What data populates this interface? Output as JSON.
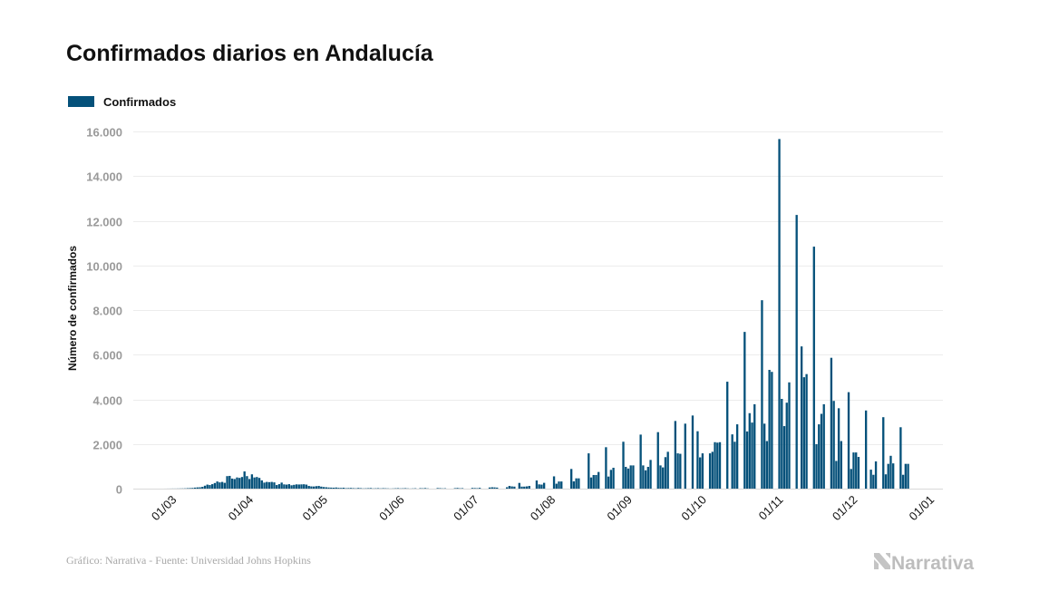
{
  "chart_data": {
    "type": "bar",
    "title": "Confirmados diarios en Andalucía",
    "legend": [
      {
        "label": "Confirmados",
        "color": "#05517a"
      }
    ],
    "legend_position": "top-left",
    "xlabel": "",
    "ylabel": "Número de confirmados",
    "ylim": [
      0,
      16000
    ],
    "yticks": [
      0,
      2000,
      4000,
      6000,
      8000,
      10000,
      12000,
      14000,
      16000
    ],
    "ytick_labels": [
      "0",
      "2.000",
      "4.000",
      "6.000",
      "8.000",
      "10.000",
      "12.000",
      "14.000",
      "16.000"
    ],
    "xlim": [
      "2020-02-13",
      "2021-01-05"
    ],
    "xticks": [
      "2020-03-01",
      "2020-04-01",
      "2020-05-01",
      "2020-06-01",
      "2020-07-01",
      "2020-08-01",
      "2020-09-01",
      "2020-10-01",
      "2020-11-01",
      "2020-12-01",
      "2021-01-01"
    ],
    "xtick_labels": [
      "01/03",
      "01/04",
      "01/05",
      "01/06",
      "01/07",
      "01/08",
      "01/09",
      "01/10",
      "01/11",
      "01/12",
      "01/01"
    ],
    "grid": true,
    "start_date": "2020-02-24",
    "series": [
      {
        "name": "Confirmados",
        "color": "#05517a",
        "values": [
          0,
          0,
          1,
          2,
          3,
          5,
          4,
          6,
          8,
          10,
          12,
          20,
          25,
          30,
          45,
          55,
          60,
          80,
          130,
          180,
          160,
          200,
          250,
          320,
          280,
          300,
          260,
          560,
          570,
          450,
          430,
          500,
          480,
          520,
          770,
          560,
          430,
          640,
          500,
          520,
          480,
          370,
          270,
          300,
          290,
          300,
          280,
          160,
          200,
          270,
          190,
          180,
          200,
          150,
          170,
          190,
          185,
          190,
          195,
          180,
          120,
          100,
          95,
          110,
          120,
          90,
          70,
          60,
          50,
          45,
          40,
          50,
          35,
          30,
          40,
          20,
          25,
          30,
          20,
          15,
          30,
          20,
          10,
          15,
          20,
          25,
          10,
          15,
          20,
          10,
          20,
          15,
          10,
          5,
          10,
          15,
          20,
          10,
          15,
          20,
          10,
          5,
          10,
          15,
          0,
          20,
          15,
          25,
          10,
          0,
          0,
          0,
          25,
          20,
          10,
          15,
          0,
          0,
          0,
          20,
          30,
          15,
          20,
          0,
          0,
          0,
          30,
          25,
          20,
          35,
          0,
          0,
          0,
          50,
          60,
          55,
          45,
          0,
          0,
          0,
          60,
          120,
          100,
          90,
          0,
          255,
          90,
          90,
          100,
          120,
          0,
          0,
          365,
          190,
          180,
          260,
          0,
          0,
          0,
          550,
          220,
          320,
          320,
          0,
          0,
          0,
          880,
          325,
          460,
          460,
          0,
          0,
          0,
          1580,
          500,
          610,
          610,
          745,
          0,
          0,
          1855,
          540,
          840,
          935,
          0,
          0,
          0,
          2100,
          975,
          900,
          1040,
          1040,
          0,
          0,
          2420,
          1040,
          820,
          975,
          1285,
          0,
          0,
          2530,
          1040,
          950,
          1410,
          1650,
          0,
          0,
          3030,
          1580,
          1560,
          0,
          2910,
          0,
          0,
          3275,
          0,
          2570,
          1400,
          1580,
          0,
          0,
          1580,
          1650,
          2080,
          2060,
          2080,
          0,
          0,
          4790,
          0,
          2430,
          2100,
          2880,
          0,
          0,
          7020,
          2560,
          3380,
          2960,
          3780,
          0,
          0,
          8440,
          2910,
          2130,
          5320,
          5230,
          0,
          0,
          15660,
          4020,
          2800,
          3850,
          4760,
          0,
          0,
          12260,
          0,
          6370,
          4990,
          5130,
          0,
          0,
          10840,
          1990,
          2880,
          3350,
          3780,
          0,
          0,
          5860,
          3930,
          1240,
          3600,
          2130,
          0,
          0,
          4320,
          880,
          1620,
          1620,
          1420,
          0,
          0,
          3500,
          0,
          850,
          620,
          1220,
          0,
          0,
          3200,
          640,
          1110,
          1470,
          1130,
          0,
          0,
          2750,
          620,
          1110,
          1110
        ]
      }
    ]
  },
  "footer": {
    "source": "Gráfico: Narrativa - Fuente: Universidad Johns Hopkins",
    "logo_text": "Narrativa"
  }
}
